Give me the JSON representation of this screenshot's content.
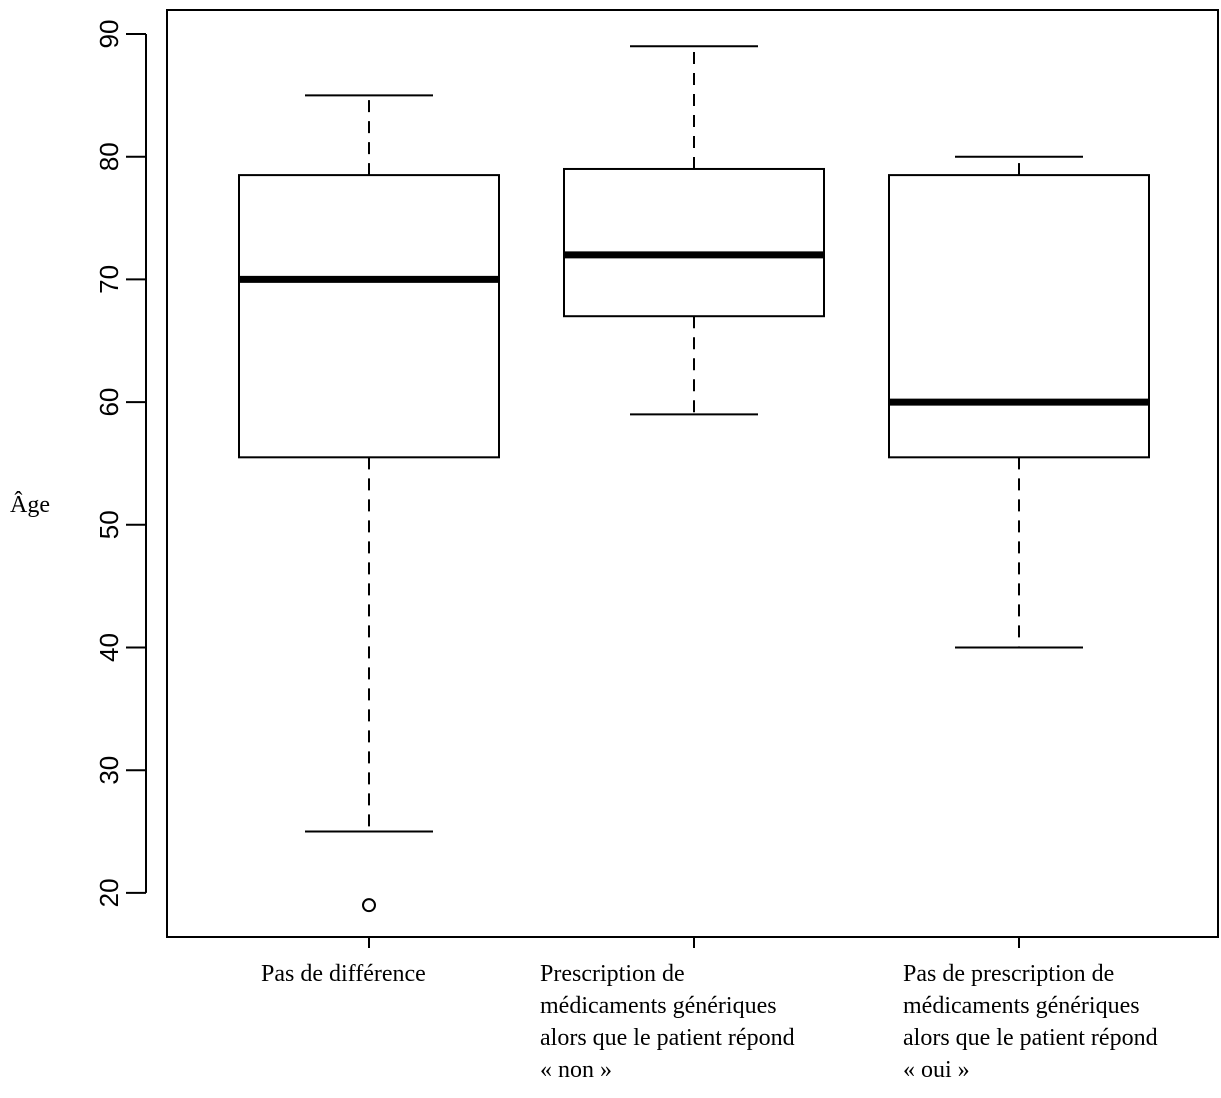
{
  "chart_data": {
    "type": "boxplot",
    "ylabel": "Âge",
    "ylim": [
      16.5,
      92
    ],
    "yticks": [
      20,
      30,
      40,
      50,
      60,
      70,
      80,
      90
    ],
    "categories": [
      "Pas de différence",
      "Prescription de médicaments génériques alors que le patient répond « non »",
      "Pas de prescription de médicaments génériques alors que le patient répond « oui »"
    ],
    "boxes": [
      {
        "category": "Pas de différence",
        "whisker_low": 25,
        "q1": 55.5,
        "median": 70,
        "q3": 78.5,
        "whisker_high": 85,
        "outliers": [
          19
        ]
      },
      {
        "category": "Prescription de médicaments génériques alors que le patient répond « non »",
        "whisker_low": 59,
        "q1": 67,
        "median": 72,
        "q3": 79,
        "whisker_high": 89,
        "outliers": []
      },
      {
        "category": "Pas de prescription de médicaments génériques alors que le patient répond « oui »",
        "whisker_low": 40,
        "q1": 55.5,
        "median": 60,
        "q3": 78.5,
        "whisker_high": 80,
        "outliers": []
      }
    ],
    "grid": false,
    "legend": "none"
  },
  "x_labels": [
    [
      "Pas de différence"
    ],
    [
      "Prescription de",
      "médicaments génériques",
      "alors que le patient répond",
      "« non »"
    ],
    [
      "Pas de prescription de",
      "médicaments génériques",
      "alors que le patient répond",
      "« oui »"
    ]
  ]
}
